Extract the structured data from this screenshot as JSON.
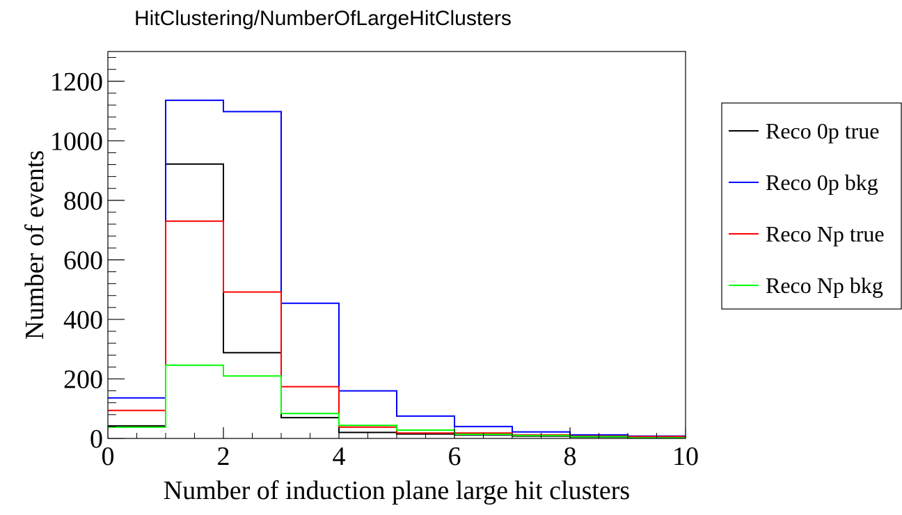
{
  "chart_data": {
    "type": "histogram",
    "title": "HitClustering/NumberOfLargeHitClusters",
    "xlabel": "Number of induction plane large hit clusters",
    "ylabel": "Number of events",
    "xlim": [
      0,
      10
    ],
    "ylim": [
      0,
      1300
    ],
    "bin_edges": [
      0,
      1,
      2,
      3,
      4,
      5,
      6,
      7,
      8,
      9,
      10
    ],
    "x_ticks": [
      "0",
      "2",
      "4",
      "6",
      "8",
      "10"
    ],
    "x_tick_values": [
      0,
      2,
      4,
      6,
      8,
      10
    ],
    "y_ticks": [
      "0",
      "200",
      "400",
      "600",
      "800",
      "1000",
      "1200"
    ],
    "y_tick_values": [
      0,
      200,
      400,
      600,
      800,
      1000,
      1200
    ],
    "grid": false,
    "legend_position": "right",
    "series": [
      {
        "name": "Reco 0p true",
        "color": "#000000",
        "values": [
          42,
          922,
          288,
          70,
          20,
          15,
          12,
          8,
          5,
          3
        ]
      },
      {
        "name": "Reco 0p bkg",
        "color": "#0000ff",
        "values": [
          136,
          1136,
          1098,
          454,
          160,
          75,
          40,
          22,
          12,
          8
        ]
      },
      {
        "name": "Reco Np true",
        "color": "#ff0000",
        "values": [
          94,
          730,
          492,
          174,
          38,
          18,
          18,
          12,
          8,
          6
        ]
      },
      {
        "name": "Reco Np bkg",
        "color": "#00ff00",
        "values": [
          38,
          246,
          210,
          84,
          44,
          28,
          14,
          10,
          6,
          2
        ]
      }
    ]
  }
}
